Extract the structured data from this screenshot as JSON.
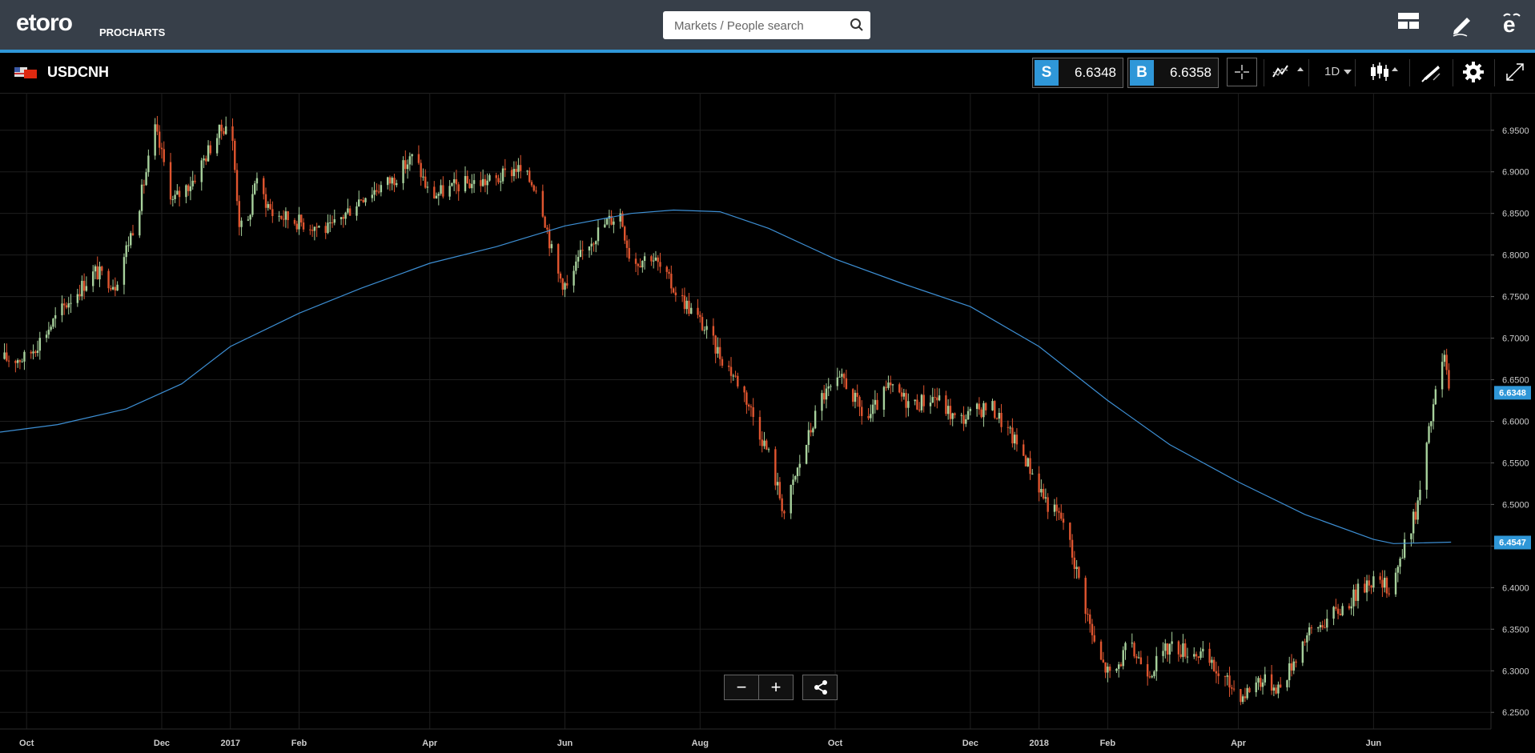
{
  "app": {
    "brand": "etoro",
    "brand_sub": "PROCHARTS",
    "search": {
      "placeholder": "Markets / People search"
    }
  },
  "icons": {
    "search": "search-icon",
    "layout": "layout-icon",
    "draw": "pencil-icon",
    "profile": "etoro-e-icon",
    "flag": "us-cn-flag-icon",
    "crosshair": "crosshair-icon",
    "indicators": "indicators-icon",
    "candles": "candlestick-icon",
    "drawing_tools": "drawing-tools-icon",
    "settings": "gear-icon",
    "fullscreen": "expand-icon",
    "share": "share-icon"
  },
  "instrument": {
    "symbol": "USDCNH",
    "sell_label": "S",
    "sell_price": "6.6348",
    "buy_label": "B",
    "buy_price": "6.6358",
    "timeframe": "1D"
  },
  "zoom": {
    "minus": "−",
    "plus": "+"
  },
  "colors": {
    "background": "#000000",
    "topbar": "#373f49",
    "accent": "#2f97d8",
    "up_candle": "#a7d19c",
    "down_candle": "#e0552f",
    "moving_average": "#3d8fd4",
    "grid": "#1e1e1e"
  },
  "chart_data": {
    "type": "candlestick",
    "grid": true,
    "ylim": [
      6.23,
      6.995
    ],
    "y_ticks": [
      "6.9500",
      "6.9000",
      "6.8500",
      "6.8000",
      "6.7500",
      "6.7000",
      "6.6500",
      "6.6000",
      "6.5500",
      "6.5000",
      "6.4500",
      "6.4000",
      "6.3500",
      "6.3000",
      "6.2500"
    ],
    "x_ticks": [
      "Oct",
      "Dec",
      "2017",
      "Feb",
      "Apr",
      "Jun",
      "Aug",
      "Oct",
      "Dec",
      "2018",
      "Feb",
      "Apr",
      "Jun"
    ],
    "last_price_label": "6.6348",
    "ma_label": "6.4547",
    "price_path": [
      [
        "2016-09-21",
        6.675
      ],
      [
        "2016-10-01",
        6.676
      ],
      [
        "2016-10-20",
        6.745
      ],
      [
        "2016-11-01",
        6.78
      ],
      [
        "2016-11-10",
        6.765
      ],
      [
        "2016-11-20",
        6.85
      ],
      [
        "2016-11-28",
        6.95
      ],
      [
        "2016-12-02",
        6.91
      ],
      [
        "2016-12-06",
        6.865
      ],
      [
        "2016-12-15",
        6.89
      ],
      [
        "2016-12-25",
        6.94
      ],
      [
        "2017-01-01",
        6.965
      ],
      [
        "2017-01-05",
        6.84
      ],
      [
        "2017-01-08",
        6.82
      ],
      [
        "2017-01-12",
        6.89
      ],
      [
        "2017-01-20",
        6.85
      ],
      [
        "2017-02-01",
        6.84
      ],
      [
        "2017-02-15",
        6.83
      ],
      [
        "2017-03-01",
        6.87
      ],
      [
        "2017-03-15",
        6.89
      ],
      [
        "2017-03-25",
        6.92
      ],
      [
        "2017-04-01",
        6.87
      ],
      [
        "2017-04-15",
        6.885
      ],
      [
        "2017-05-01",
        6.89
      ],
      [
        "2017-05-10",
        6.905
      ],
      [
        "2017-05-20",
        6.88
      ],
      [
        "2017-05-28",
        6.78
      ],
      [
        "2017-06-02",
        6.76
      ],
      [
        "2017-06-10",
        6.81
      ],
      [
        "2017-06-20",
        6.84
      ],
      [
        "2017-06-26",
        6.85
      ],
      [
        "2017-07-01",
        6.79
      ],
      [
        "2017-07-10",
        6.8
      ],
      [
        "2017-07-20",
        6.76
      ],
      [
        "2017-08-01",
        6.72
      ],
      [
        "2017-08-10",
        6.68
      ],
      [
        "2017-08-20",
        6.64
      ],
      [
        "2017-09-01",
        6.56
      ],
      [
        "2017-09-08",
        6.49
      ],
      [
        "2017-09-15",
        6.55
      ],
      [
        "2017-09-25",
        6.63
      ],
      [
        "2017-10-05",
        6.65
      ],
      [
        "2017-10-15",
        6.6
      ],
      [
        "2017-10-25",
        6.64
      ],
      [
        "2017-11-05",
        6.62
      ],
      [
        "2017-11-15",
        6.63
      ],
      [
        "2017-11-25",
        6.6
      ],
      [
        "2017-12-10",
        6.62
      ],
      [
        "2017-12-25",
        6.56
      ],
      [
        "2018-01-05",
        6.5
      ],
      [
        "2018-01-12",
        6.48
      ],
      [
        "2018-01-20",
        6.4
      ],
      [
        "2018-01-27",
        6.32
      ],
      [
        "2018-02-03",
        6.29
      ],
      [
        "2018-02-10",
        6.33
      ],
      [
        "2018-02-20",
        6.3
      ],
      [
        "2018-03-01",
        6.33
      ],
      [
        "2018-03-15",
        6.32
      ],
      [
        "2018-03-25",
        6.29
      ],
      [
        "2018-04-03",
        6.27
      ],
      [
        "2018-04-10",
        6.29
      ],
      [
        "2018-04-20",
        6.28
      ],
      [
        "2018-05-01",
        6.34
      ],
      [
        "2018-05-10",
        6.36
      ],
      [
        "2018-05-20",
        6.38
      ],
      [
        "2018-05-30",
        6.41
      ],
      [
        "2018-06-08",
        6.4
      ],
      [
        "2018-06-14",
        6.44
      ],
      [
        "2018-06-21",
        6.5
      ],
      [
        "2018-06-28",
        6.62
      ],
      [
        "2018-07-03",
        6.68
      ],
      [
        "2018-07-05",
        6.635
      ]
    ],
    "moving_average": [
      [
        "2016-09-19",
        6.587
      ],
      [
        "2016-10-15",
        6.596
      ],
      [
        "2016-11-15",
        6.615
      ],
      [
        "2016-12-10",
        6.645
      ],
      [
        "2017-01-01",
        6.69
      ],
      [
        "2017-02-01",
        6.73
      ],
      [
        "2017-03-01",
        6.76
      ],
      [
        "2017-04-01",
        6.79
      ],
      [
        "2017-05-01",
        6.81
      ],
      [
        "2017-06-01",
        6.835
      ],
      [
        "2017-07-01",
        6.85
      ],
      [
        "2017-07-20",
        6.854
      ],
      [
        "2017-08-10",
        6.852
      ],
      [
        "2017-09-01",
        6.832
      ],
      [
        "2017-10-01",
        6.795
      ],
      [
        "2017-11-01",
        6.765
      ],
      [
        "2017-12-01",
        6.738
      ],
      [
        "2018-01-01",
        6.69
      ],
      [
        "2018-02-01",
        6.625
      ],
      [
        "2018-03-01",
        6.572
      ],
      [
        "2018-04-01",
        6.527
      ],
      [
        "2018-05-01",
        6.488
      ],
      [
        "2018-06-01",
        6.458
      ],
      [
        "2018-06-10",
        6.453
      ],
      [
        "2018-07-06",
        6.4547
      ]
    ]
  }
}
